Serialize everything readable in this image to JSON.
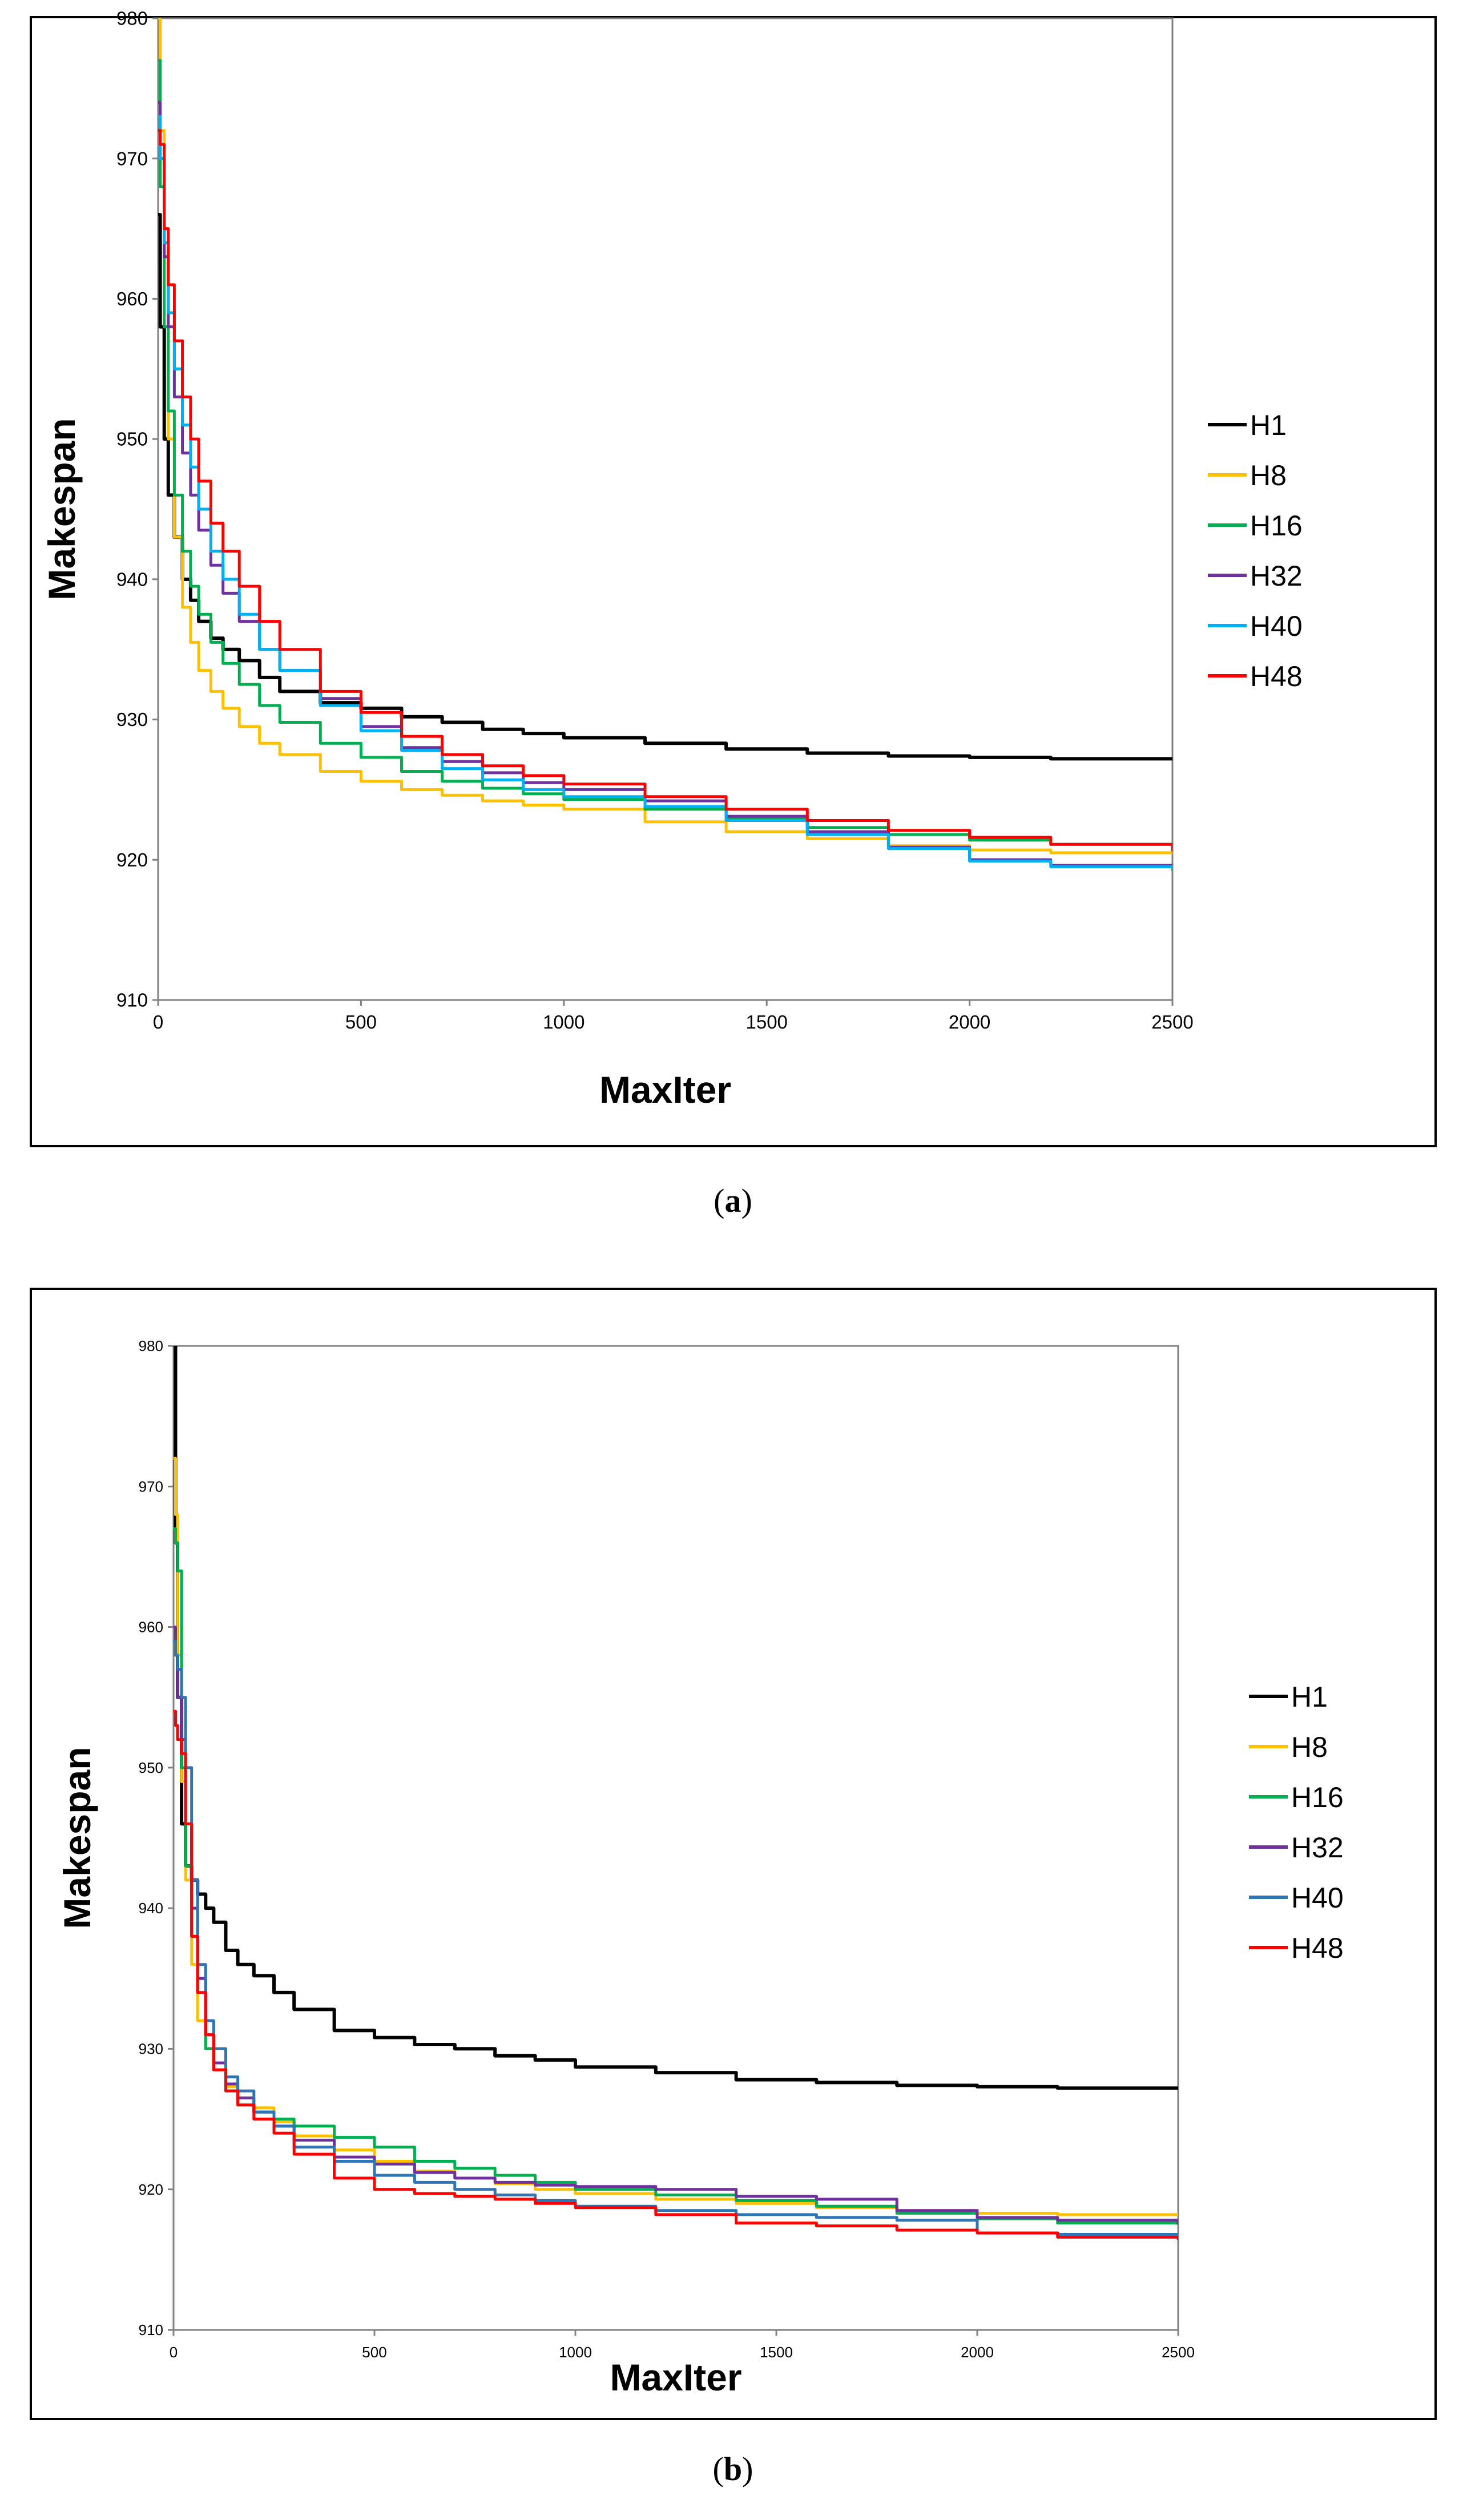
{
  "chart_data": [
    {
      "type": "line",
      "panel": "a",
      "caption_letter": "a",
      "title": "",
      "xlabel": "MaxIter",
      "ylabel": "Makespan",
      "xlim": [
        0,
        2500
      ],
      "ylim": [
        910,
        980
      ],
      "xticks": [
        0,
        500,
        1000,
        1500,
        2000,
        2500
      ],
      "yticks": [
        910,
        920,
        930,
        940,
        950,
        960,
        970,
        980
      ],
      "grid": false,
      "legend_position": "right",
      "series": [
        {
          "name": "H1",
          "color": "#000000",
          "x": [
            0,
            5,
            15,
            25,
            40,
            60,
            80,
            100,
            130,
            160,
            200,
            250,
            300,
            400,
            500,
            600,
            700,
            800,
            900,
            1000,
            1200,
            1400,
            1600,
            1800,
            2000,
            2200,
            2500
          ],
          "y": [
            966,
            958,
            950,
            946,
            943,
            940,
            938.5,
            937,
            935.8,
            935,
            934.2,
            933,
            932,
            931.2,
            930.8,
            930.2,
            929.8,
            929.3,
            929,
            928.7,
            928.3,
            927.9,
            927.6,
            927.4,
            927.3,
            927.2,
            927.2
          ]
        },
        {
          "name": "H8",
          "color": "#ffc000",
          "x": [
            0,
            5,
            15,
            25,
            40,
            60,
            80,
            100,
            130,
            160,
            200,
            250,
            300,
            400,
            500,
            600,
            700,
            800,
            900,
            1000,
            1200,
            1400,
            1600,
            1800,
            2000,
            2200,
            2500
          ],
          "y": [
            980,
            972,
            958,
            950,
            943,
            938,
            935.5,
            933.5,
            932,
            930.8,
            929.5,
            928.3,
            927.5,
            926.3,
            925.6,
            925,
            924.6,
            924.2,
            923.9,
            923.6,
            922.7,
            922,
            921.5,
            921,
            920.7,
            920.5,
            920.4
          ]
        },
        {
          "name": "H16",
          "color": "#00b050",
          "x": [
            0,
            5,
            15,
            25,
            40,
            60,
            80,
            100,
            130,
            160,
            200,
            250,
            300,
            400,
            500,
            600,
            700,
            800,
            900,
            1000,
            1200,
            1400,
            1600,
            1800,
            2000,
            2200,
            2500
          ],
          "y": [
            977,
            968,
            958,
            952,
            946,
            942,
            939.5,
            937.5,
            935.5,
            934,
            932.5,
            931,
            929.8,
            928.3,
            927.3,
            926.3,
            925.6,
            925.1,
            924.7,
            924.3,
            923.6,
            922.9,
            922.3,
            921.8,
            921.4,
            921.1,
            920.7
          ]
        },
        {
          "name": "H32",
          "color": "#7030a0",
          "x": [
            0,
            5,
            15,
            25,
            40,
            60,
            80,
            100,
            130,
            160,
            200,
            250,
            300,
            400,
            500,
            600,
            700,
            800,
            900,
            1000,
            1200,
            1400,
            1600,
            1800,
            2000,
            2200,
            2500
          ],
          "y": [
            974,
            970,
            963,
            958,
            953,
            949,
            946,
            943.5,
            941,
            939,
            937,
            935,
            933.5,
            931.5,
            929.5,
            928,
            927,
            926.2,
            925.5,
            925,
            924.2,
            923.1,
            922,
            920.9,
            920,
            919.6,
            919.3
          ]
        },
        {
          "name": "H40",
          "color": "#00b0f0",
          "x": [
            0,
            5,
            15,
            25,
            40,
            60,
            80,
            100,
            130,
            160,
            200,
            250,
            300,
            400,
            500,
            600,
            700,
            800,
            900,
            1000,
            1200,
            1400,
            1600,
            1800,
            2000,
            2200,
            2500
          ],
          "y": [
            973,
            970,
            964,
            959,
            955,
            951,
            948,
            945,
            942,
            940,
            937.5,
            935,
            933.5,
            931,
            929.2,
            927.8,
            926.5,
            925.7,
            925,
            924.5,
            923.8,
            922.8,
            921.8,
            920.8,
            919.9,
            919.5,
            919.2
          ]
        },
        {
          "name": "H48",
          "color": "#ff0000",
          "x": [
            0,
            5,
            15,
            25,
            40,
            60,
            80,
            100,
            130,
            160,
            200,
            250,
            300,
            400,
            500,
            600,
            700,
            800,
            900,
            1000,
            1200,
            1400,
            1600,
            1800,
            2000,
            2200,
            2500
          ],
          "y": [
            972,
            971,
            965,
            961,
            957,
            953,
            950,
            947,
            944,
            942,
            939.5,
            937,
            935,
            932,
            930.5,
            928.8,
            927.5,
            926.7,
            926,
            925.4,
            924.5,
            923.6,
            922.8,
            922.1,
            921.6,
            921.1,
            920.6
          ]
        }
      ]
    },
    {
      "type": "line",
      "panel": "b",
      "caption_letter": "b",
      "title": "",
      "xlabel": "MaxIter",
      "ylabel": "Makespan",
      "xlim": [
        0,
        2500
      ],
      "ylim": [
        910,
        980
      ],
      "xticks": [
        0,
        500,
        1000,
        1500,
        2000,
        2500
      ],
      "yticks": [
        910,
        920,
        930,
        940,
        950,
        960,
        970,
        980
      ],
      "grid": false,
      "legend_position": "right",
      "series": [
        {
          "name": "H1",
          "color": "#000000",
          "x": [
            0,
            5,
            10,
            20,
            30,
            45,
            60,
            80,
            100,
            130,
            160,
            200,
            250,
            300,
            400,
            500,
            600,
            700,
            800,
            900,
            1000,
            1200,
            1400,
            1600,
            1800,
            2000,
            2200,
            2500
          ],
          "y": [
            980,
            966,
            955,
            946,
            943,
            942,
            941,
            940,
            939,
            937,
            936,
            935.2,
            934,
            932.8,
            931.3,
            930.8,
            930.3,
            930,
            929.5,
            929.2,
            928.7,
            928.3,
            927.8,
            927.6,
            927.4,
            927.3,
            927.2,
            927.2
          ]
        },
        {
          "name": "H8",
          "color": "#ffc000",
          "x": [
            0,
            5,
            10,
            20,
            30,
            45,
            60,
            80,
            100,
            130,
            160,
            200,
            250,
            300,
            400,
            500,
            600,
            700,
            800,
            900,
            1000,
            1200,
            1400,
            1600,
            1800,
            2000,
            2200,
            2500
          ],
          "y": [
            972,
            968,
            958,
            949,
            942,
            936,
            932,
            930,
            928.5,
            927.3,
            926.5,
            925.8,
            924.8,
            923.8,
            922.8,
            922,
            921.3,
            920.8,
            920.4,
            920,
            919.7,
            919.3,
            919,
            918.7,
            918.5,
            918.3,
            918.2,
            918.1
          ]
        },
        {
          "name": "H16",
          "color": "#00b050",
          "x": [
            0,
            5,
            10,
            20,
            30,
            45,
            60,
            80,
            100,
            130,
            160,
            200,
            250,
            300,
            400,
            500,
            600,
            700,
            800,
            900,
            1000,
            1200,
            1400,
            1600,
            1800,
            2000,
            2200,
            2500
          ],
          "y": [
            967,
            966,
            964,
            950,
            943,
            938,
            934,
            930,
            928.5,
            927,
            926,
            925.5,
            925,
            924.5,
            923.7,
            923,
            922,
            921.5,
            921,
            920.5,
            920,
            919.6,
            919.2,
            918.8,
            918.3,
            917.9,
            917.6,
            917.5
          ]
        },
        {
          "name": "H32",
          "color": "#7030a0",
          "x": [
            0,
            5,
            10,
            20,
            30,
            45,
            60,
            80,
            100,
            130,
            160,
            200,
            250,
            300,
            400,
            500,
            600,
            700,
            800,
            900,
            1000,
            1200,
            1400,
            1600,
            1800,
            2000,
            2200,
            2500
          ],
          "y": [
            960,
            958,
            955,
            952,
            946,
            940,
            935,
            931,
            929,
            927.5,
            926.5,
            925.5,
            924.5,
            923.5,
            922.3,
            921.8,
            921.2,
            920.8,
            920.5,
            920.3,
            920.2,
            920,
            919.5,
            919.3,
            918.5,
            918,
            917.8,
            917.5
          ]
        },
        {
          "name": "H40",
          "color": "#2e75b6",
          "x": [
            0,
            5,
            10,
            20,
            30,
            45,
            60,
            80,
            100,
            130,
            160,
            200,
            250,
            300,
            400,
            500,
            600,
            700,
            800,
            900,
            1000,
            1200,
            1400,
            1600,
            1800,
            2000,
            2200,
            2500
          ],
          "y": [
            959,
            958,
            957,
            955,
            950,
            942,
            936,
            932,
            930,
            928,
            927,
            925.5,
            924.5,
            923,
            922,
            921,
            920.5,
            920,
            919.6,
            919.2,
            918.8,
            918.5,
            918.2,
            918,
            917.8,
            916.9,
            916.8,
            916.7
          ]
        },
        {
          "name": "H48",
          "color": "#ff0000",
          "x": [
            0,
            5,
            10,
            20,
            30,
            45,
            60,
            80,
            100,
            130,
            160,
            200,
            250,
            300,
            400,
            500,
            600,
            700,
            800,
            900,
            1000,
            1200,
            1400,
            1600,
            1800,
            2000,
            2200,
            2500
          ],
          "y": [
            954,
            953,
            952,
            951,
            946,
            938,
            934,
            931,
            928.5,
            927,
            926,
            925,
            924,
            922.5,
            920.8,
            920,
            919.7,
            919.5,
            919.3,
            919,
            918.7,
            918.2,
            917.6,
            917.4,
            917.1,
            916.9,
            916.6,
            916.4
          ]
        }
      ]
    }
  ]
}
